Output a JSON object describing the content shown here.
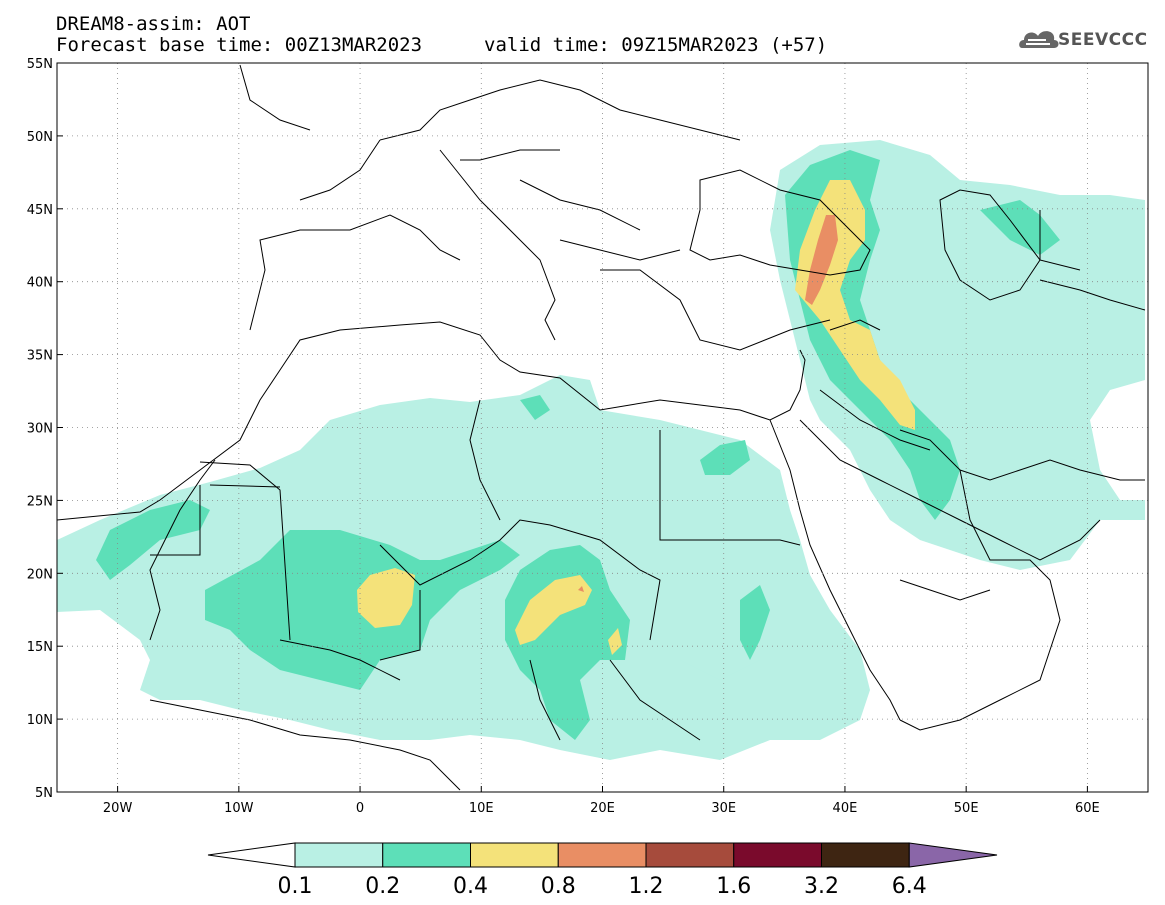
{
  "header": {
    "line1": "DREAM8-assim: AOT",
    "line2": "Forecast base time: 00Z13MAR2023",
    "line3": "valid time: 09Z15MAR2023 (+57)"
  },
  "logo": {
    "text": "SEEVCCC",
    "icon": "cloud-icon"
  },
  "map": {
    "lon_range": [
      -25,
      65
    ],
    "lat_range": [
      5,
      55
    ],
    "lat_ticks": [
      "5N",
      "10N",
      "15N",
      "20N",
      "25N",
      "30N",
      "35N",
      "40N",
      "45N",
      "50N",
      "55N"
    ],
    "lon_ticks": [
      "20W",
      "10W",
      "0",
      "10E",
      "20E",
      "30E",
      "40E",
      "50E",
      "60E"
    ],
    "grid": "dotted"
  },
  "colorbar": {
    "labels": [
      "0.1",
      "0.2",
      "0.4",
      "0.8",
      "1.2",
      "1.6",
      "3.2",
      "6.4"
    ],
    "colors": [
      "#b9f0e4",
      "#5ddfb8",
      "#f4e27a",
      "#e98e64",
      "#a64b3c",
      "#7a0a2c",
      "#3e2512",
      "#8a66a8"
    ],
    "under_color": "#ffffff"
  }
}
